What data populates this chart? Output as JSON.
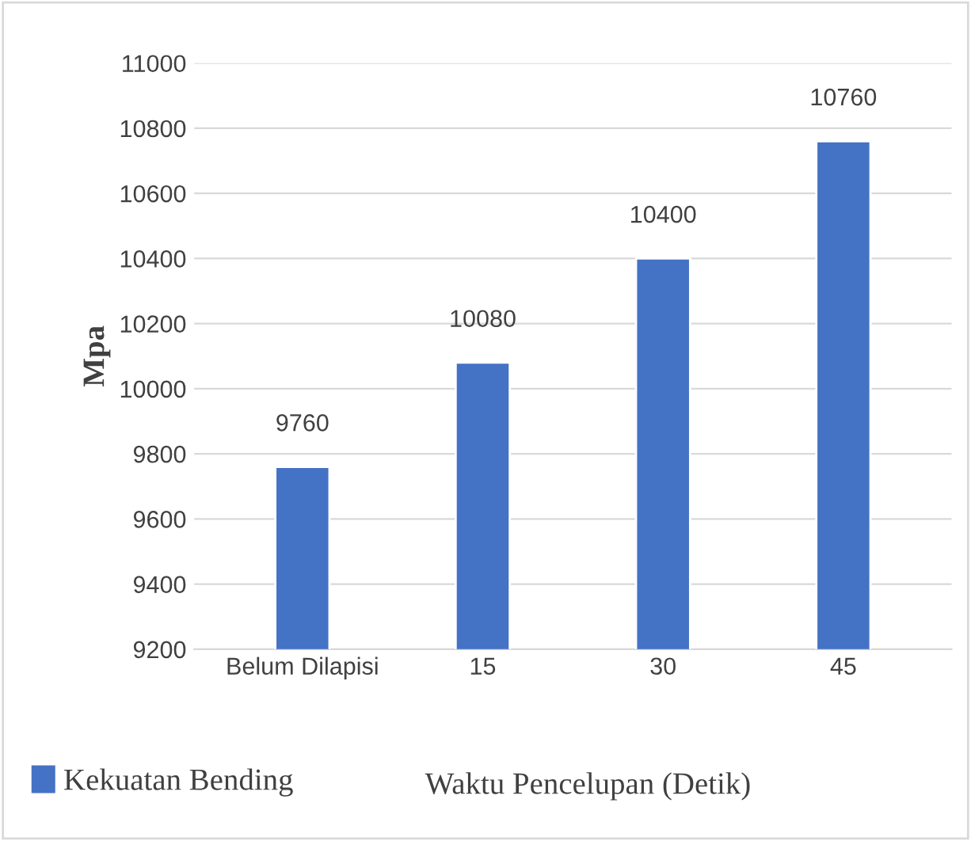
{
  "chart_data": {
    "type": "bar",
    "ylabel": "Mpa",
    "xlabel": "Waktu Pencelupan (Detik)",
    "categories": [
      "Belum Dilapisi",
      "15",
      "30",
      "45"
    ],
    "series": [
      {
        "name": "Kekuatan Bending",
        "color": "#4472c4",
        "values": [
          9760,
          10080,
          10400,
          10760
        ]
      }
    ],
    "ylim": [
      9200,
      11000
    ],
    "yticks": [
      9200,
      9400,
      9600,
      9800,
      10000,
      10200,
      10400,
      10600,
      10800,
      11000
    ],
    "grid": "y",
    "legend": "bottom",
    "data_labels": true
  }
}
